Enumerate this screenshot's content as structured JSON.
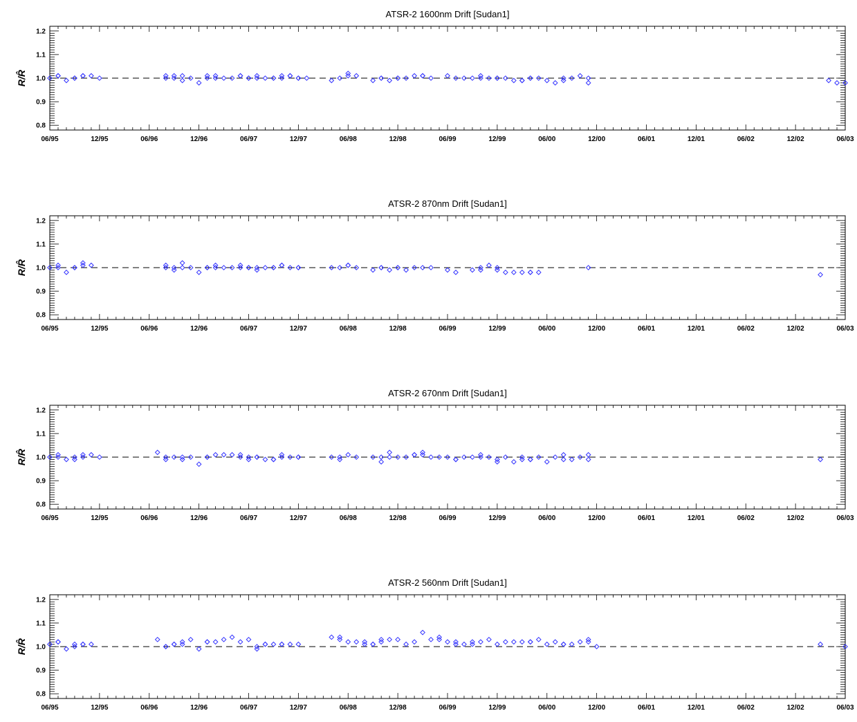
{
  "figure": {
    "background": "#ffffff",
    "marker_color": "#3333ff"
  },
  "chart_data": [
    {
      "type": "scatter",
      "title": "ATSR-2   1600nm Drift [Sudan1]",
      "ylabel": "R/R̂",
      "ylim": [
        0.78,
        1.22
      ],
      "yticks": [
        "0.8",
        "0.9",
        "1.0",
        "1.1",
        "1.2"
      ],
      "xticks": [
        "06/95",
        "12/95",
        "06/96",
        "12/96",
        "06/97",
        "12/97",
        "06/98",
        "12/98",
        "06/99",
        "12/99",
        "06/00",
        "12/00",
        "06/01",
        "12/01",
        "06/02",
        "12/02",
        "06/03"
      ],
      "reference_line": 1.0,
      "x": [
        "06/95",
        "07/95",
        "07/95",
        "08/95",
        "09/95",
        "09/95",
        "10/95",
        "10/95",
        "11/95",
        "12/95",
        "08/96",
        "08/96",
        "09/96",
        "09/96",
        "10/96",
        "10/96",
        "11/96",
        "12/96",
        "01/97",
        "01/97",
        "02/97",
        "02/97",
        "03/97",
        "04/97",
        "05/97",
        "05/97",
        "06/97",
        "06/97",
        "07/97",
        "07/97",
        "08/97",
        "09/97",
        "09/97",
        "10/97",
        "10/97",
        "11/97",
        "11/97",
        "12/97",
        "12/97",
        "01/98",
        "04/98",
        "05/98",
        "06/98",
        "06/98",
        "07/98",
        "09/98",
        "10/98",
        "10/98",
        "11/98",
        "12/98",
        "12/98",
        "01/99",
        "02/99",
        "03/99",
        "03/99",
        "04/99",
        "06/99",
        "07/99",
        "08/99",
        "09/99",
        "10/99",
        "10/99",
        "11/99",
        "12/99",
        "12/99",
        "01/00",
        "02/00",
        "03/00",
        "03/00",
        "04/00",
        "04/00",
        "05/00",
        "06/00",
        "07/00",
        "08/00",
        "08/00",
        "09/00",
        "10/00",
        "11/00",
        "11/00",
        "04/03",
        "05/03",
        "06/03"
      ],
      "values": [
        1.0,
        1.01,
        1.01,
        0.99,
        1.0,
        1.0,
        1.01,
        1.01,
        1.01,
        1.0,
        1.01,
        1.0,
        1.0,
        1.01,
        1.01,
        0.99,
        1.0,
        0.98,
        1.0,
        1.01,
        1.01,
        1.0,
        1.0,
        1.0,
        1.01,
        1.01,
        1.0,
        1.0,
        1.01,
        1.0,
        1.0,
        1.0,
        1.0,
        1.01,
        1.0,
        1.01,
        1.01,
        1.0,
        1.0,
        1.0,
        0.99,
        1.0,
        1.01,
        1.02,
        1.01,
        0.99,
        1.0,
        1.0,
        0.99,
        1.0,
        1.0,
        1.0,
        1.01,
        1.01,
        1.01,
        1.0,
        1.01,
        1.0,
        1.0,
        1.0,
        1.01,
        1.0,
        1.0,
        1.0,
        1.0,
        1.0,
        0.99,
        0.99,
        0.99,
        1.0,
        1.0,
        1.0,
        0.99,
        0.98,
        0.99,
        1.0,
        1.0,
        1.01,
        0.98,
        1.0,
        0.99,
        0.98,
        0.98
      ]
    },
    {
      "type": "scatter",
      "title": "ATSR-2   870nm Drift [Sudan1]",
      "ylabel": "R/R̂",
      "ylim": [
        0.78,
        1.22
      ],
      "yticks": [
        "0.8",
        "0.9",
        "1.0",
        "1.1",
        "1.2"
      ],
      "xticks": [
        "06/95",
        "12/95",
        "06/96",
        "12/96",
        "06/97",
        "12/97",
        "06/98",
        "12/98",
        "06/99",
        "12/99",
        "06/00",
        "12/00",
        "06/01",
        "12/01",
        "06/02",
        "12/02",
        "06/03"
      ],
      "reference_line": 1.0,
      "x": [
        "06/95",
        "07/95",
        "07/95",
        "08/95",
        "09/95",
        "09/95",
        "10/95",
        "10/95",
        "11/95",
        "08/96",
        "08/96",
        "09/96",
        "09/96",
        "10/96",
        "10/96",
        "11/96",
        "12/96",
        "01/97",
        "01/97",
        "02/97",
        "02/97",
        "03/97",
        "04/97",
        "05/97",
        "05/97",
        "06/97",
        "06/97",
        "07/97",
        "07/97",
        "08/97",
        "09/97",
        "09/97",
        "10/97",
        "10/97",
        "11/97",
        "12/97",
        "12/97",
        "04/98",
        "05/98",
        "06/98",
        "06/98",
        "07/98",
        "09/98",
        "10/98",
        "10/98",
        "11/98",
        "12/98",
        "12/98",
        "01/99",
        "02/99",
        "03/99",
        "04/99",
        "06/99",
        "07/99",
        "09/99",
        "10/99",
        "10/99",
        "11/99",
        "12/99",
        "12/99",
        "01/00",
        "02/00",
        "03/00",
        "04/00",
        "04/00",
        "05/00",
        "11/00",
        "03/03"
      ],
      "values": [
        1.0,
        1.01,
        1.0,
        0.98,
        1.0,
        1.0,
        1.01,
        1.02,
        1.01,
        1.01,
        1.0,
        0.99,
        1.0,
        1.02,
        1.0,
        1.0,
        0.98,
        1.0,
        1.0,
        1.01,
        1.0,
        1.0,
        1.0,
        1.01,
        1.0,
        1.0,
        1.0,
        0.99,
        1.0,
        1.0,
        1.0,
        1.0,
        1.01,
        1.01,
        1.0,
        1.0,
        1.0,
        1.0,
        1.0,
        1.01,
        1.01,
        1.0,
        0.99,
        1.0,
        1.0,
        0.99,
        1.0,
        1.0,
        0.99,
        1.0,
        1.0,
        1.0,
        0.99,
        0.98,
        0.99,
        0.99,
        1.0,
        1.01,
        1.0,
        0.99,
        0.98,
        0.98,
        0.98,
        0.98,
        0.98,
        0.98,
        1.0,
        0.97
      ]
    },
    {
      "type": "scatter",
      "title": "ATSR-2   670nm Drift [Sudan1]",
      "ylabel": "R/R̂",
      "ylim": [
        0.78,
        1.22
      ],
      "yticks": [
        "0.8",
        "0.9",
        "1.0",
        "1.1",
        "1.2"
      ],
      "xticks": [
        "06/95",
        "12/95",
        "06/96",
        "12/96",
        "06/97",
        "12/97",
        "06/98",
        "12/98",
        "06/99",
        "12/99",
        "06/00",
        "12/00",
        "06/01",
        "12/01",
        "06/02",
        "12/02",
        "06/03"
      ],
      "reference_line": 1.0,
      "x": [
        "06/95",
        "07/95",
        "07/95",
        "08/95",
        "09/95",
        "09/95",
        "10/95",
        "10/95",
        "11/95",
        "12/95",
        "07/96",
        "08/96",
        "08/96",
        "09/96",
        "10/96",
        "10/96",
        "11/96",
        "12/96",
        "01/97",
        "01/97",
        "02/97",
        "03/97",
        "04/97",
        "05/97",
        "05/97",
        "06/97",
        "06/97",
        "07/97",
        "07/97",
        "08/97",
        "09/97",
        "09/97",
        "10/97",
        "10/97",
        "11/97",
        "12/97",
        "12/97",
        "04/98",
        "05/98",
        "05/98",
        "06/98",
        "07/98",
        "09/98",
        "10/98",
        "10/98",
        "11/98",
        "11/98",
        "12/98",
        "01/99",
        "02/99",
        "02/99",
        "03/99",
        "03/99",
        "04/99",
        "05/99",
        "06/99",
        "07/99",
        "07/99",
        "08/99",
        "09/99",
        "10/99",
        "10/99",
        "11/99",
        "12/99",
        "12/99",
        "01/00",
        "02/00",
        "03/00",
        "03/00",
        "04/00",
        "04/00",
        "05/00",
        "06/00",
        "07/00",
        "08/00",
        "08/00",
        "09/00",
        "10/00",
        "11/00",
        "11/00",
        "03/03"
      ],
      "values": [
        1.0,
        1.01,
        1.0,
        0.99,
        0.99,
        1.0,
        1.0,
        1.01,
        1.01,
        1.0,
        1.02,
        1.0,
        0.99,
        1.0,
        1.0,
        0.99,
        1.0,
        0.97,
        1.0,
        1.0,
        1.01,
        1.01,
        1.01,
        1.0,
        1.01,
        1.0,
        0.99,
        1.0,
        1.0,
        0.99,
        0.99,
        0.99,
        1.01,
        1.0,
        1.0,
        1.0,
        1.0,
        1.0,
        1.0,
        0.99,
        1.01,
        1.0,
        1.0,
        1.0,
        0.98,
        1.0,
        1.02,
        1.0,
        1.0,
        1.01,
        1.01,
        1.02,
        1.01,
        1.0,
        1.0,
        1.0,
        0.99,
        0.99,
        1.0,
        1.0,
        1.0,
        1.01,
        1.0,
        0.99,
        0.98,
        1.0,
        0.98,
        0.99,
        1.0,
        0.99,
        0.99,
        1.0,
        0.98,
        1.0,
        0.99,
        1.01,
        0.99,
        1.0,
        0.99,
        1.01,
        0.99
      ]
    },
    {
      "type": "scatter",
      "title": "ATSR-2   560nm Drift [Sudan1]",
      "ylabel": "R/R̂",
      "ylim": [
        0.78,
        1.22
      ],
      "yticks": [
        "0.8",
        "0.9",
        "1.0",
        "1.1",
        "1.2"
      ],
      "xticks": [
        "06/95",
        "12/95",
        "06/96",
        "12/96",
        "06/97",
        "12/97",
        "06/98",
        "12/98",
        "06/99",
        "12/99",
        "06/00",
        "12/00",
        "06/01",
        "12/01",
        "06/02",
        "12/02",
        "06/03"
      ],
      "reference_line": 1.0,
      "x": [
        "06/95",
        "07/95",
        "07/95",
        "08/95",
        "09/95",
        "09/95",
        "10/95",
        "10/95",
        "11/95",
        "07/96",
        "08/96",
        "08/96",
        "09/96",
        "09/96",
        "10/96",
        "10/96",
        "11/96",
        "12/96",
        "01/97",
        "01/97",
        "02/97",
        "03/97",
        "04/97",
        "05/97",
        "06/97",
        "07/97",
        "07/97",
        "08/97",
        "08/97",
        "09/97",
        "10/97",
        "10/97",
        "11/97",
        "12/97",
        "04/98",
        "05/98",
        "05/98",
        "06/98",
        "07/98",
        "08/98",
        "08/98",
        "09/98",
        "09/98",
        "10/98",
        "10/98",
        "11/98",
        "12/98",
        "01/99",
        "02/99",
        "03/99",
        "04/99",
        "05/99",
        "05/99",
        "06/99",
        "07/99",
        "07/99",
        "08/99",
        "09/99",
        "09/99",
        "10/99",
        "11/99",
        "12/99",
        "01/00",
        "02/00",
        "03/00",
        "04/00",
        "04/00",
        "05/00",
        "06/00",
        "07/00",
        "08/00",
        "08/00",
        "09/00",
        "10/00",
        "11/00",
        "11/00",
        "12/00",
        "03/03",
        "06/03"
      ],
      "values": [
        1.01,
        1.02,
        1.02,
        0.99,
        1.01,
        1.0,
        1.01,
        1.01,
        1.01,
        1.03,
        1.0,
        1.0,
        1.01,
        1.01,
        1.01,
        1.02,
        1.03,
        0.99,
        1.02,
        1.02,
        1.02,
        1.03,
        1.04,
        1.02,
        1.03,
        0.99,
        1.0,
        1.01,
        1.01,
        1.01,
        1.01,
        1.01,
        1.01,
        1.01,
        1.04,
        1.04,
        1.03,
        1.02,
        1.02,
        1.02,
        1.01,
        1.01,
        1.01,
        1.02,
        1.03,
        1.03,
        1.03,
        1.01,
        1.02,
        1.06,
        1.03,
        1.03,
        1.04,
        1.02,
        1.02,
        1.01,
        1.01,
        1.02,
        1.01,
        1.02,
        1.03,
        1.01,
        1.02,
        1.02,
        1.02,
        1.02,
        1.02,
        1.03,
        1.01,
        1.02,
        1.01,
        1.01,
        1.01,
        1.02,
        1.03,
        1.02,
        1.0,
        1.01,
        1.0
      ]
    }
  ]
}
